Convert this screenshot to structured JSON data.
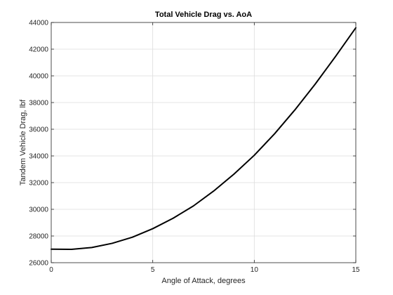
{
  "chart_data": {
    "type": "line",
    "title": "Total Vehicle Drag vs. AoA",
    "xlabel": "Angle of Attack, degrees",
    "ylabel": "Tandem Vehicle Drag, lbf",
    "xlim": [
      0,
      15
    ],
    "ylim": [
      26000,
      44000
    ],
    "xticks": [
      0,
      5,
      10,
      15
    ],
    "yticks": [
      26000,
      28000,
      30000,
      32000,
      34000,
      36000,
      38000,
      40000,
      42000,
      44000
    ],
    "grid": true,
    "series": [
      {
        "color": "#000000",
        "x": [
          0,
          1,
          2,
          3,
          4,
          5,
          6,
          7,
          8,
          9,
          10,
          11,
          12,
          13,
          14,
          15
        ],
        "y": [
          27010,
          27000,
          27140,
          27450,
          27910,
          28550,
          29330,
          30250,
          31370,
          32640,
          34050,
          35660,
          37450,
          39380,
          41450,
          43600
        ]
      }
    ]
  }
}
